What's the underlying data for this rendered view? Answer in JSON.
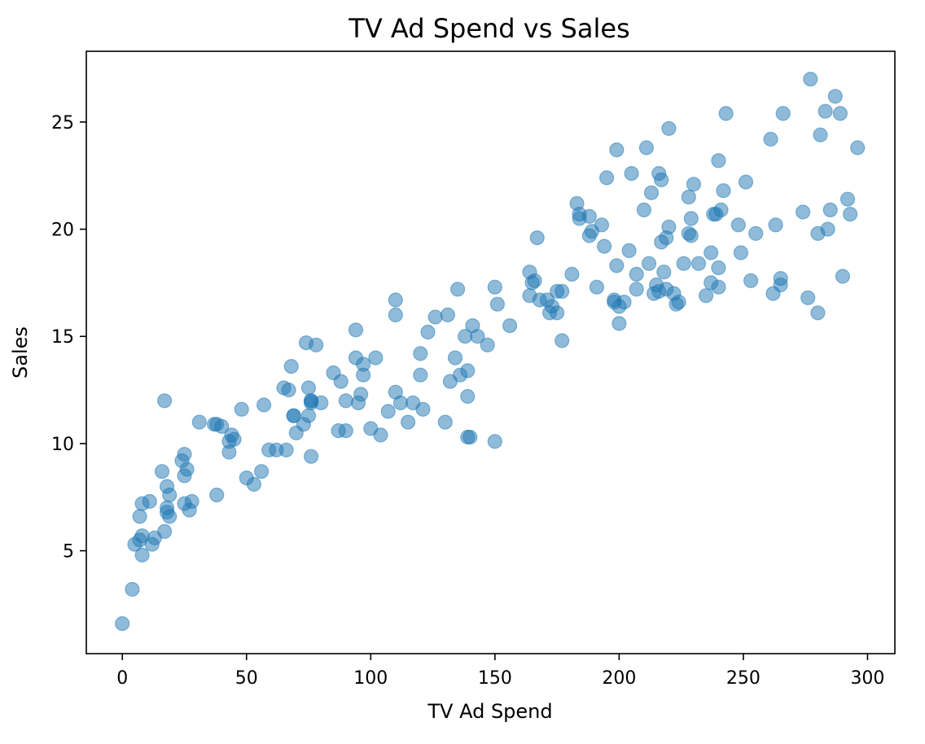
{
  "chart_data": {
    "type": "scatter",
    "title": "TV Ad Spend vs Sales",
    "xlabel": "TV Ad Spend",
    "ylabel": "Sales",
    "xlim": [
      -14.5,
      311
    ],
    "ylim": [
      0.2,
      28.3
    ],
    "xticks": [
      0,
      50,
      100,
      150,
      200,
      250,
      300
    ],
    "yticks": [
      5,
      10,
      15,
      20,
      25
    ],
    "grid": false,
    "color": "#1f77b4",
    "alpha": 0.5,
    "series": [
      {
        "points": [
          [
            0,
            1.6
          ],
          [
            4,
            3.2
          ],
          [
            5,
            5.3
          ],
          [
            7,
            5.5
          ],
          [
            7,
            6.6
          ],
          [
            8,
            4.8
          ],
          [
            8,
            5.7
          ],
          [
            8,
            7.2
          ],
          [
            11,
            7.3
          ],
          [
            12,
            5.3
          ],
          [
            13,
            5.6
          ],
          [
            16,
            8.7
          ],
          [
            17,
            5.9
          ],
          [
            17,
            12.0
          ],
          [
            18,
            8.0
          ],
          [
            18,
            7.0
          ],
          [
            18,
            6.8
          ],
          [
            19,
            6.6
          ],
          [
            19,
            7.6
          ],
          [
            24,
            9.2
          ],
          [
            25,
            8.5
          ],
          [
            25,
            9.5
          ],
          [
            25,
            7.2
          ],
          [
            26,
            8.8
          ],
          [
            27,
            6.9
          ],
          [
            28,
            7.3
          ],
          [
            31,
            11.0
          ],
          [
            37,
            10.9
          ],
          [
            38,
            10.9
          ],
          [
            38,
            7.6
          ],
          [
            40,
            10.8
          ],
          [
            43,
            9.6
          ],
          [
            43,
            10.1
          ],
          [
            44,
            10.4
          ],
          [
            45,
            10.2
          ],
          [
            48,
            11.6
          ],
          [
            50,
            8.4
          ],
          [
            53,
            8.1
          ],
          [
            56,
            8.7
          ],
          [
            57,
            11.8
          ],
          [
            59,
            9.7
          ],
          [
            62,
            9.7
          ],
          [
            65,
            12.6
          ],
          [
            66,
            9.7
          ],
          [
            67,
            12.5
          ],
          [
            68,
            13.6
          ],
          [
            69,
            11.3
          ],
          [
            69,
            11.3
          ],
          [
            70,
            10.5
          ],
          [
            73,
            10.9
          ],
          [
            74,
            14.7
          ],
          [
            75,
            12.6
          ],
          [
            75,
            11.3
          ],
          [
            76,
            11.9
          ],
          [
            76,
            12.0
          ],
          [
            76,
            12.0
          ],
          [
            76,
            9.4
          ],
          [
            78,
            14.6
          ],
          [
            80,
            11.9
          ],
          [
            85,
            13.3
          ],
          [
            87,
            10.6
          ],
          [
            88,
            12.9
          ],
          [
            90,
            10.6
          ],
          [
            90,
            12.0
          ],
          [
            94,
            15.3
          ],
          [
            94,
            14.0
          ],
          [
            95,
            11.9
          ],
          [
            96,
            12.3
          ],
          [
            97,
            13.7
          ],
          [
            97,
            13.2
          ],
          [
            100,
            10.7
          ],
          [
            102,
            14.0
          ],
          [
            104,
            10.4
          ],
          [
            107,
            11.5
          ],
          [
            110,
            16.7
          ],
          [
            110,
            12.4
          ],
          [
            110,
            16.0
          ],
          [
            112,
            11.9
          ],
          [
            115,
            11.0
          ],
          [
            117,
            11.9
          ],
          [
            120,
            14.2
          ],
          [
            120,
            13.2
          ],
          [
            121,
            11.6
          ],
          [
            123,
            15.2
          ],
          [
            126,
            15.9
          ],
          [
            130,
            11.0
          ],
          [
            131,
            16.0
          ],
          [
            132,
            12.9
          ],
          [
            134,
            14.0
          ],
          [
            135,
            17.2
          ],
          [
            136,
            13.2
          ],
          [
            138,
            15.0
          ],
          [
            139,
            13.4
          ],
          [
            139,
            12.2
          ],
          [
            139,
            10.3
          ],
          [
            140,
            10.3
          ],
          [
            141,
            15.5
          ],
          [
            143,
            15.0
          ],
          [
            147,
            14.6
          ],
          [
            150,
            10.1
          ],
          [
            150,
            17.3
          ],
          [
            151,
            16.5
          ],
          [
            156,
            15.5
          ],
          [
            164,
            16.9
          ],
          [
            164,
            18.0
          ],
          [
            165,
            17.5
          ],
          [
            166,
            17.6
          ],
          [
            167,
            19.6
          ],
          [
            168,
            16.7
          ],
          [
            171,
            16.7
          ],
          [
            172,
            16.1
          ],
          [
            173,
            16.4
          ],
          [
            175,
            17.1
          ],
          [
            175,
            16.1
          ],
          [
            177,
            17.1
          ],
          [
            177,
            14.8
          ],
          [
            181,
            17.9
          ],
          [
            183,
            21.2
          ],
          [
            184,
            20.7
          ],
          [
            184,
            20.5
          ],
          [
            188,
            20.6
          ],
          [
            188,
            19.7
          ],
          [
            189,
            19.9
          ],
          [
            191,
            17.3
          ],
          [
            193,
            20.2
          ],
          [
            194,
            19.2
          ],
          [
            195,
            22.4
          ],
          [
            198,
            16.7
          ],
          [
            198,
            16.6
          ],
          [
            199,
            18.3
          ],
          [
            199,
            23.7
          ],
          [
            200,
            15.6
          ],
          [
            200,
            16.4
          ],
          [
            202,
            16.6
          ],
          [
            204,
            19.0
          ],
          [
            205,
            22.6
          ],
          [
            207,
            17.2
          ],
          [
            207,
            17.9
          ],
          [
            210,
            20.9
          ],
          [
            211,
            23.8
          ],
          [
            212,
            18.4
          ],
          [
            213,
            21.7
          ],
          [
            214,
            17.0
          ],
          [
            215,
            17.4
          ],
          [
            216,
            17.1
          ],
          [
            216,
            22.6
          ],
          [
            217,
            22.3
          ],
          [
            217,
            19.4
          ],
          [
            218,
            18.0
          ],
          [
            219,
            17.2
          ],
          [
            219,
            19.6
          ],
          [
            220,
            24.7
          ],
          [
            220,
            20.1
          ],
          [
            222,
            17.0
          ],
          [
            223,
            16.5
          ],
          [
            224,
            16.6
          ],
          [
            226,
            18.4
          ],
          [
            228,
            21.5
          ],
          [
            228,
            19.8
          ],
          [
            229,
            20.5
          ],
          [
            229,
            19.7
          ],
          [
            230,
            22.1
          ],
          [
            232,
            18.4
          ],
          [
            235,
            16.9
          ],
          [
            237,
            17.5
          ],
          [
            237,
            18.9
          ],
          [
            238,
            20.7
          ],
          [
            239,
            20.7
          ],
          [
            240,
            23.2
          ],
          [
            240,
            17.3
          ],
          [
            240,
            18.2
          ],
          [
            241,
            20.9
          ],
          [
            242,
            21.8
          ],
          [
            243,
            25.4
          ],
          [
            248,
            20.2
          ],
          [
            249,
            18.9
          ],
          [
            251,
            22.2
          ],
          [
            253,
            17.6
          ],
          [
            255,
            19.8
          ],
          [
            261,
            24.2
          ],
          [
            262,
            17.0
          ],
          [
            263,
            20.2
          ],
          [
            265,
            17.4
          ],
          [
            265,
            17.7
          ],
          [
            266,
            25.4
          ],
          [
            274,
            20.8
          ],
          [
            276,
            16.8
          ],
          [
            277,
            27.0
          ],
          [
            280,
            16.1
          ],
          [
            280,
            19.8
          ],
          [
            281,
            24.4
          ],
          [
            283,
            25.5
          ],
          [
            284,
            20.0
          ],
          [
            285,
            20.9
          ],
          [
            287,
            26.2
          ],
          [
            289,
            25.4
          ],
          [
            290,
            17.8
          ],
          [
            292,
            21.4
          ],
          [
            293,
            20.7
          ],
          [
            296,
            23.8
          ]
        ]
      }
    ]
  }
}
